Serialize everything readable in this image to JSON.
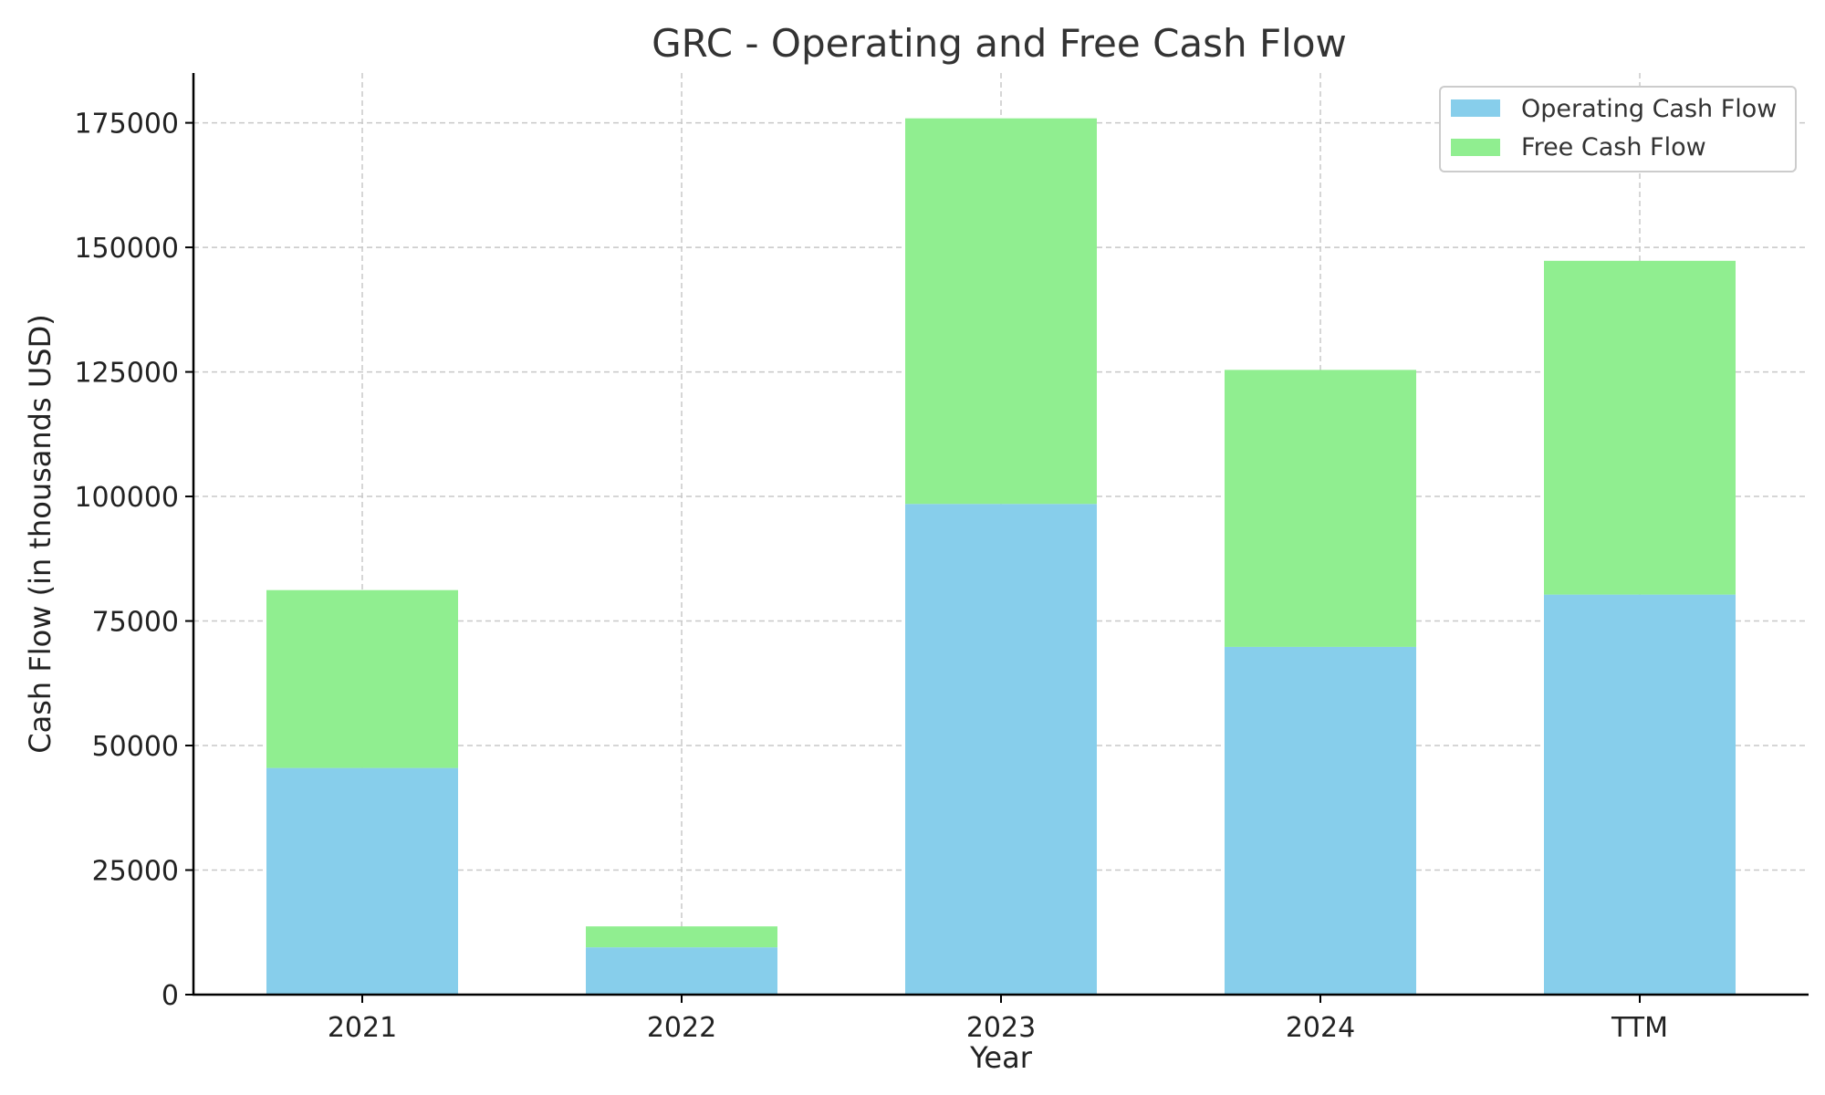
{
  "chart_data": {
    "type": "bar",
    "stacked": true,
    "title": "GRC - Operating and Free Cash Flow",
    "xlabel": "Year",
    "ylabel": "Cash Flow (in thousands USD)",
    "categories": [
      "2021",
      "2022",
      "2023",
      "2024",
      "TTM"
    ],
    "series": [
      {
        "name": "Operating Cash Flow",
        "color": "#87CEEB",
        "values": [
          45500,
          9500,
          98500,
          69800,
          80300
        ]
      },
      {
        "name": "Free Cash Flow",
        "color": "#90EE90",
        "values": [
          35700,
          4200,
          77400,
          55600,
          67000
        ]
      }
    ],
    "ylim": [
      0,
      185000
    ],
    "yticks": [
      0,
      25000,
      50000,
      75000,
      100000,
      125000,
      150000,
      175000
    ],
    "grid": true,
    "legend_position": "top-right"
  }
}
